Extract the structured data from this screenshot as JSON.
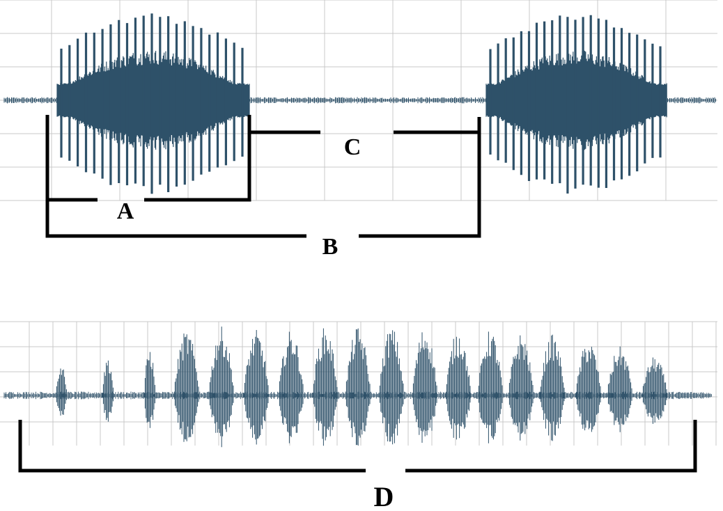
{
  "labels": {
    "a": "A",
    "b": "B",
    "c": "C",
    "d": "D"
  },
  "colors": {
    "waveform": "#2e5169",
    "grid": "#c8c8c8",
    "bracket": "#000000",
    "background": "#ffffff"
  },
  "top_trace": {
    "bursts": 2,
    "pulses_per_burst": 23
  },
  "bottom_trace": {
    "bursts": 17
  }
}
